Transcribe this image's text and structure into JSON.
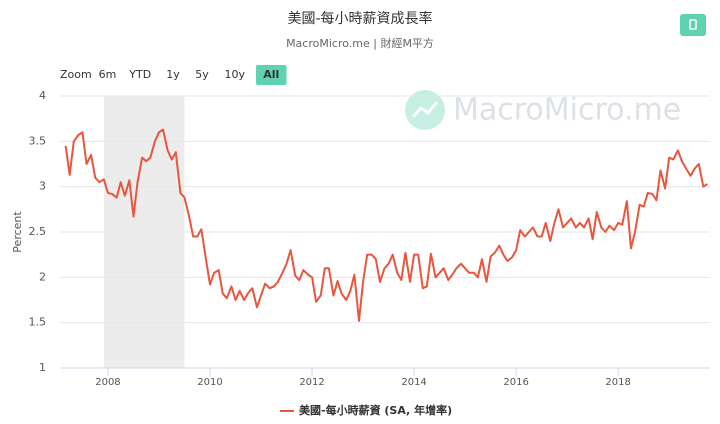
{
  "chart_data": {
    "type": "line",
    "title": "美國-每小時薪資成長率",
    "subtitle": "MacroMicro.me | 財經M平方",
    "watermark": "MacroMicro.me",
    "y_label": "Percent",
    "range_selector": {
      "label": "Zoom",
      "buttons": [
        {
          "label": "6m",
          "active": false
        },
        {
          "label": "YTD",
          "active": false
        },
        {
          "label": "1y",
          "active": false
        },
        {
          "label": "5y",
          "active": false
        },
        {
          "label": "10y",
          "active": false
        },
        {
          "label": "All",
          "active": true
        }
      ]
    },
    "shaded_regions": [
      {
        "from": 2007.92,
        "to": 2009.5,
        "color": "#ececec"
      }
    ],
    "xlim": [
      2007.06,
      2019.8
    ],
    "xticks": [
      2008,
      2010,
      2012,
      2014,
      2016,
      2018
    ],
    "ylim": [
      1,
      4
    ],
    "yticks": [
      1,
      1.5,
      2,
      2.5,
      3,
      3.5,
      4
    ],
    "grid": true,
    "x": [
      2007.17,
      2007.25,
      2007.33,
      2007.42,
      2007.5,
      2007.58,
      2007.67,
      2007.75,
      2007.83,
      2007.92,
      2008,
      2008.08,
      2008.17,
      2008.25,
      2008.33,
      2008.42,
      2008.5,
      2008.58,
      2008.67,
      2008.75,
      2008.83,
      2008.92,
      2009,
      2009.08,
      2009.17,
      2009.25,
      2009.33,
      2009.42,
      2009.5,
      2009.58,
      2009.67,
      2009.75,
      2009.83,
      2009.92,
      2010,
      2010.08,
      2010.17,
      2010.25,
      2010.33,
      2010.42,
      2010.5,
      2010.58,
      2010.67,
      2010.75,
      2010.83,
      2010.92,
      2011,
      2011.08,
      2011.17,
      2011.25,
      2011.33,
      2011.42,
      2011.5,
      2011.58,
      2011.67,
      2011.75,
      2011.83,
      2011.92,
      2012,
      2012.08,
      2012.17,
      2012.25,
      2012.33,
      2012.42,
      2012.5,
      2012.58,
      2012.67,
      2012.75,
      2012.83,
      2012.92,
      2013,
      2013.08,
      2013.17,
      2013.25,
      2013.33,
      2013.42,
      2013.5,
      2013.58,
      2013.67,
      2013.75,
      2013.83,
      2013.92,
      2014,
      2014.08,
      2014.17,
      2014.25,
      2014.33,
      2014.42,
      2014.5,
      2014.58,
      2014.67,
      2014.75,
      2014.83,
      2014.92,
      2015,
      2015.08,
      2015.17,
      2015.25,
      2015.33,
      2015.42,
      2015.5,
      2015.58,
      2015.67,
      2015.75,
      2015.83,
      2015.92,
      2016,
      2016.08,
      2016.17,
      2016.25,
      2016.33,
      2016.42,
      2016.5,
      2016.58,
      2016.67,
      2016.75,
      2016.83,
      2016.92,
      2017,
      2017.08,
      2017.17,
      2017.25,
      2017.33,
      2017.42,
      2017.5,
      2017.58,
      2017.67,
      2017.75,
      2017.83,
      2017.92,
      2018,
      2018.08,
      2018.17,
      2018.25,
      2018.33,
      2018.42,
      2018.5,
      2018.58,
      2018.67,
      2018.75,
      2018.83,
      2018.92,
      2019,
      2019.08,
      2019.17,
      2019.25,
      2019.33,
      2019.42,
      2019.5,
      2019.58,
      2019.67,
      2019.75
    ],
    "series": [
      {
        "name": "美國-每小時薪資 (SA, 年增率)",
        "color": "#e8563e",
        "values": [
          3.45,
          3.13,
          3.5,
          3.57,
          3.6,
          3.25,
          3.35,
          3.1,
          3.05,
          3.08,
          2.93,
          2.92,
          2.88,
          3.05,
          2.9,
          3.07,
          2.67,
          3.05,
          3.32,
          3.28,
          3.32,
          3.5,
          3.6,
          3.63,
          3.4,
          3.3,
          3.38,
          2.93,
          2.88,
          2.7,
          2.45,
          2.45,
          2.53,
          2.2,
          1.92,
          2.05,
          2.08,
          1.82,
          1.77,
          1.9,
          1.75,
          1.85,
          1.75,
          1.83,
          1.88,
          1.67,
          1.8,
          1.93,
          1.88,
          1.9,
          1.95,
          2.05,
          2.15,
          2.3,
          2.02,
          1.97,
          2.08,
          2.03,
          2.0,
          1.73,
          1.8,
          2.1,
          2.1,
          1.8,
          1.96,
          1.82,
          1.75,
          1.85,
          2.03,
          1.52,
          1.95,
          2.25,
          2.25,
          2.2,
          1.95,
          2.1,
          2.15,
          2.25,
          2.05,
          1.97,
          2.27,
          1.95,
          2.25,
          2.25,
          1.88,
          1.9,
          2.26,
          2.0,
          2.05,
          2.1,
          1.97,
          2.03,
          2.1,
          2.15,
          2.1,
          2.05,
          2.05,
          2.0,
          2.2,
          1.95,
          2.23,
          2.27,
          2.35,
          2.25,
          2.18,
          2.22,
          2.3,
          2.52,
          2.45,
          2.5,
          2.55,
          2.45,
          2.45,
          2.6,
          2.4,
          2.6,
          2.75,
          2.55,
          2.6,
          2.65,
          2.55,
          2.6,
          2.55,
          2.65,
          2.42,
          2.72,
          2.55,
          2.5,
          2.57,
          2.52,
          2.6,
          2.58,
          2.84,
          2.32,
          2.5,
          2.8,
          2.78,
          2.93,
          2.92,
          2.85,
          3.18,
          2.98,
          3.32,
          3.3,
          3.4,
          3.28,
          3.2,
          3.12,
          3.2,
          3.25,
          3.0,
          3.03
        ]
      }
    ]
  }
}
